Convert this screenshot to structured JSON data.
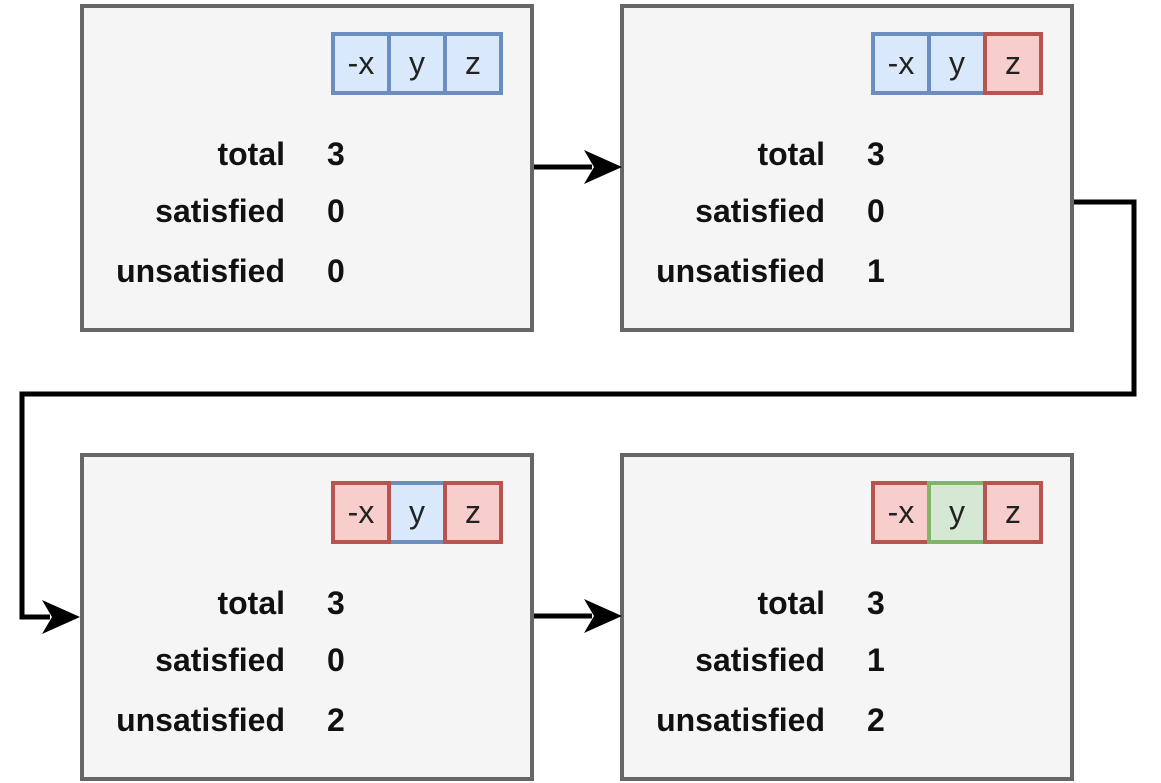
{
  "colors": {
    "panel_fill": "#f5f5f5",
    "panel_border": "#666666",
    "blue_fill": "#dae8fc",
    "blue_border": "#6c8ebf",
    "red_fill": "#f8cecc",
    "red_border": "#b85450",
    "green_fill": "#d5e8d4",
    "green_border": "#82b366",
    "arrow": "#000000"
  },
  "panels": [
    {
      "chips": [
        {
          "label": "-x",
          "color": "blue"
        },
        {
          "label": "y",
          "color": "blue"
        },
        {
          "label": "z",
          "color": "blue"
        }
      ],
      "stats": [
        {
          "label": "total",
          "value": "3"
        },
        {
          "label": "satisfied",
          "value": "0"
        },
        {
          "label": "unsatisfied",
          "value": "0"
        }
      ]
    },
    {
      "chips": [
        {
          "label": "-x",
          "color": "blue"
        },
        {
          "label": "y",
          "color": "blue"
        },
        {
          "label": "z",
          "color": "red"
        }
      ],
      "stats": [
        {
          "label": "total",
          "value": "3"
        },
        {
          "label": "satisfied",
          "value": "0"
        },
        {
          "label": "unsatisfied",
          "value": "1"
        }
      ]
    },
    {
      "chips": [
        {
          "label": "-x",
          "color": "red"
        },
        {
          "label": "y",
          "color": "blue"
        },
        {
          "label": "z",
          "color": "red"
        }
      ],
      "stats": [
        {
          "label": "total",
          "value": "3"
        },
        {
          "label": "satisfied",
          "value": "0"
        },
        {
          "label": "unsatisfied",
          "value": "2"
        }
      ]
    },
    {
      "chips": [
        {
          "label": "-x",
          "color": "red"
        },
        {
          "label": "y",
          "color": "green"
        },
        {
          "label": "z",
          "color": "red"
        }
      ],
      "stats": [
        {
          "label": "total",
          "value": "3"
        },
        {
          "label": "satisfied",
          "value": "1"
        },
        {
          "label": "unsatisfied",
          "value": "2"
        }
      ]
    }
  ]
}
